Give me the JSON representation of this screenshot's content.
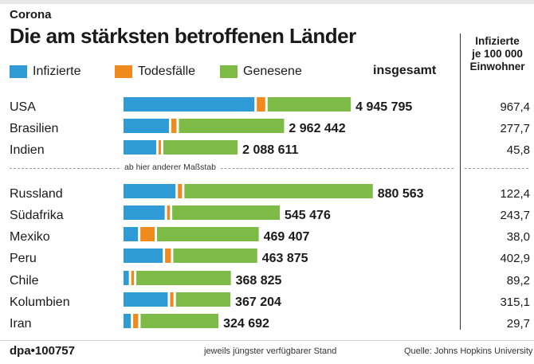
{
  "header": {
    "kicker": "Corona",
    "title": "Die am stärksten betroffenen Länder",
    "total_label": "insgesamt",
    "rate_header": [
      "Infizierte",
      "je 100 000",
      "Einwohner"
    ]
  },
  "scale_note": "ab hier anderer Maßstab",
  "footer": {
    "source_agency": "dpa•100757",
    "note": "jeweils jüngster verfügbarer Stand",
    "source": "Quelle: Johns Hopkins University"
  },
  "colors": {
    "infected": "#2e9bd6",
    "deaths": "#f08a1c",
    "recovered": "#7dba46"
  },
  "chart_data": {
    "type": "bar",
    "stacked": true,
    "orientation": "horizontal",
    "legend": [
      "Infizierte",
      "Todesfälle",
      "Genesene"
    ],
    "rows": [
      {
        "country": "USA",
        "total_label": "4 945 795",
        "rate": "967,4",
        "group": "A",
        "active": 2514000,
        "deaths": 162000,
        "recovered": 1598000
      },
      {
        "country": "Brasilien",
        "total_label": "2 962 442",
        "rate": "277,7",
        "group": "A",
        "active": 872000,
        "deaths": 99500,
        "recovered": 2021000
      },
      {
        "country": "Indien",
        "total_label": "2 088 611",
        "rate": "45,8",
        "group": "A",
        "active": 627000,
        "deaths": 42500,
        "recovered": 1427000
      },
      {
        "country": "Russland",
        "total_label": "880 563",
        "rate": "122,4",
        "group": "B",
        "active": 187000,
        "deaths": 14800,
        "recovered": 678000
      },
      {
        "country": "Südafrika",
        "total_label": "545 476",
        "rate": "243,7",
        "group": "B",
        "active": 148000,
        "deaths": 10000,
        "recovered": 387000
      },
      {
        "country": "Mexiko",
        "total_label": "469 407",
        "rate": "38,0",
        "group": "B",
        "active": 52000,
        "deaths": 51300,
        "recovered": 366000
      },
      {
        "country": "Peru",
        "total_label": "463 875",
        "rate": "402,9",
        "group": "B",
        "active": 141000,
        "deaths": 20800,
        "recovered": 302000
      },
      {
        "country": "Chile",
        "total_label": "368 825",
        "rate": "89,2",
        "group": "B",
        "active": 19000,
        "deaths": 9900,
        "recovered": 340000
      },
      {
        "country": "Kolumbien",
        "total_label": "367 204",
        "rate": "315,1",
        "group": "B",
        "active": 159000,
        "deaths": 12300,
        "recovered": 196000
      },
      {
        "country": "Iran",
        "total_label": "324 692",
        "rate": "29,7",
        "group": "B",
        "active": 26000,
        "deaths": 18300,
        "recovered": 280000
      }
    ]
  }
}
